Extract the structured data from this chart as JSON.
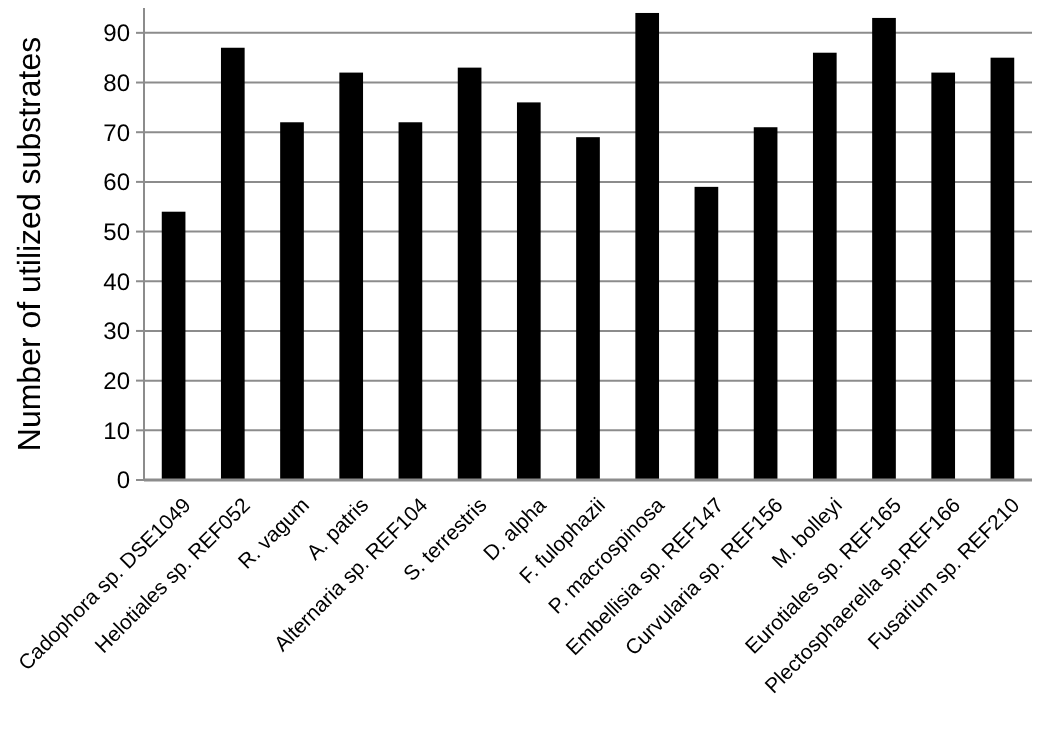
{
  "chart_data": {
    "type": "bar",
    "ylabel": "Number of utilized substrates",
    "categories": [
      "Cadophora sp. DSE1049",
      "Helotiales sp. REF052",
      "R. vagum",
      "A. patris",
      "Alternaria sp. REF104",
      "S. terrestris",
      "D. alpha",
      "F. fulophazii",
      "P. macrospinosa",
      "Embellisia sp. REF147",
      "Curvularia sp. REF156",
      "M. bolleyi",
      "Eurotiales sp. REF165",
      "Plectosphaerella sp.REF166",
      "Fusarium sp. REF210"
    ],
    "values": [
      54,
      87,
      72,
      82,
      72,
      83,
      76,
      69,
      94,
      59,
      71,
      86,
      93,
      82,
      85
    ],
    "color": "#000000",
    "ylim": [
      0,
      95
    ],
    "yticks": [
      0,
      10,
      20,
      30,
      40,
      50,
      60,
      70,
      80,
      90
    ],
    "grid": "y"
  }
}
